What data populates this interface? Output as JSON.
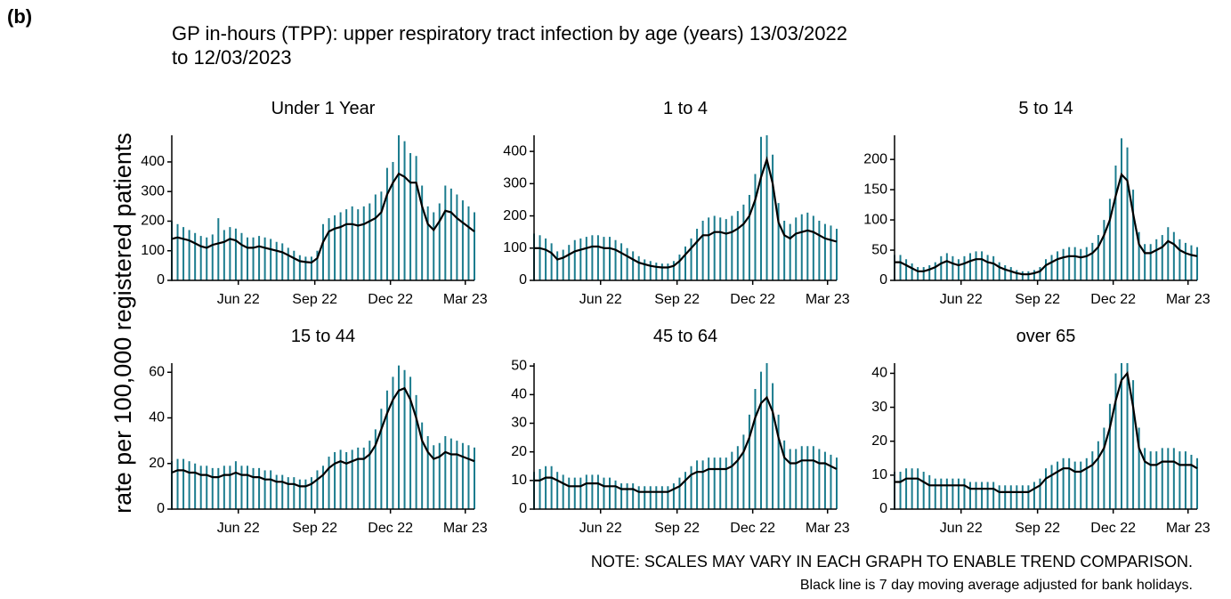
{
  "label": "(b)",
  "title": [
    "GP in-hours (TPP): upper respiratory tract infection by age (years) 13/03/2022",
    "to 12/03/2023"
  ],
  "ylabel": "rate per 100,000 registered patients",
  "notes": [
    "NOTE: SCALES MAY VARY IN EACH GRAPH TO ENABLE TREND COMPARISON.",
    "Black line is 7 day moving average adjusted for bank holidays."
  ],
  "chart_data": [
    {
      "type": "line",
      "title": "Under 1 Year",
      "x": [
        0,
        7,
        14,
        21,
        28,
        35,
        42,
        49,
        56,
        63,
        70,
        77,
        84,
        91,
        98,
        105,
        112,
        119,
        126,
        133,
        140,
        147,
        154,
        161,
        168,
        175,
        182,
        189,
        196,
        203,
        210,
        217,
        224,
        231,
        238,
        245,
        252,
        259,
        266,
        273,
        280,
        287,
        294,
        301,
        308,
        315,
        322,
        329,
        336,
        343,
        350,
        357,
        364
      ],
      "series": [
        {
          "color": "#1b7c8e",
          "values": [
            200,
            190,
            180,
            170,
            160,
            150,
            145,
            155,
            210,
            170,
            180,
            175,
            160,
            145,
            145,
            150,
            145,
            140,
            130,
            125,
            110,
            100,
            85,
            80,
            80,
            100,
            190,
            210,
            220,
            230,
            240,
            250,
            240,
            250,
            260,
            290,
            300,
            380,
            400,
            490,
            470,
            430,
            420,
            320,
            250,
            230,
            260,
            320,
            310,
            290,
            270,
            250,
            230
          ]
        },
        {
          "color": "#000000",
          "values": [
            140,
            145,
            140,
            135,
            125,
            115,
            110,
            120,
            125,
            130,
            140,
            135,
            120,
            110,
            110,
            115,
            110,
            105,
            100,
            95,
            85,
            75,
            65,
            62,
            60,
            75,
            130,
            165,
            175,
            180,
            190,
            190,
            185,
            190,
            200,
            210,
            230,
            290,
            330,
            360,
            350,
            330,
            330,
            250,
            190,
            170,
            200,
            235,
            230,
            210,
            195,
            180,
            165
          ]
        }
      ],
      "xlim": [
        0,
        364
      ],
      "ylim": [
        0,
        490
      ],
      "xticks": [
        {
          "value": 80,
          "label": "Jun 22"
        },
        {
          "value": 172,
          "label": "Sep 22"
        },
        {
          "value": 263,
          "label": "Dec 22"
        },
        {
          "value": 353,
          "label": "Mar 23"
        }
      ],
      "yticks": [
        0,
        100,
        200,
        300,
        400
      ]
    },
    {
      "type": "line",
      "title": "1 to 4",
      "x": [
        0,
        7,
        14,
        21,
        28,
        35,
        42,
        49,
        56,
        63,
        70,
        77,
        84,
        91,
        98,
        105,
        112,
        119,
        126,
        133,
        140,
        147,
        154,
        161,
        168,
        175,
        182,
        189,
        196,
        203,
        210,
        217,
        224,
        231,
        238,
        245,
        252,
        259,
        266,
        273,
        280,
        287,
        294,
        301,
        308,
        315,
        322,
        329,
        336,
        343,
        350,
        357,
        364
      ],
      "series": [
        {
          "color": "#1b7c8e",
          "values": [
            145,
            140,
            130,
            115,
            90,
            95,
            110,
            125,
            130,
            135,
            140,
            140,
            135,
            135,
            125,
            115,
            100,
            90,
            75,
            65,
            60,
            55,
            52,
            52,
            60,
            80,
            105,
            130,
            160,
            185,
            195,
            200,
            195,
            190,
            200,
            215,
            235,
            265,
            330,
            445,
            450,
            390,
            240,
            185,
            175,
            195,
            205,
            210,
            200,
            185,
            175,
            170,
            160
          ]
        },
        {
          "color": "#000000",
          "values": [
            100,
            100,
            95,
            85,
            65,
            70,
            80,
            90,
            95,
            100,
            105,
            105,
            100,
            100,
            95,
            85,
            75,
            65,
            55,
            50,
            45,
            42,
            40,
            40,
            45,
            60,
            80,
            100,
            120,
            140,
            140,
            150,
            150,
            145,
            150,
            160,
            175,
            200,
            250,
            320,
            375,
            300,
            180,
            140,
            130,
            145,
            150,
            155,
            150,
            140,
            130,
            125,
            120
          ]
        }
      ],
      "xlim": [
        0,
        364
      ],
      "ylim": [
        0,
        450
      ],
      "xticks": [
        {
          "value": 80,
          "label": "Jun 22"
        },
        {
          "value": 172,
          "label": "Sep 22"
        },
        {
          "value": 263,
          "label": "Dec 22"
        },
        {
          "value": 353,
          "label": "Mar 23"
        }
      ],
      "yticks": [
        0,
        100,
        200,
        300,
        400
      ]
    },
    {
      "type": "line",
      "title": "5 to 14",
      "x": [
        0,
        7,
        14,
        21,
        28,
        35,
        42,
        49,
        56,
        63,
        70,
        77,
        84,
        91,
        98,
        105,
        112,
        119,
        126,
        133,
        140,
        147,
        154,
        161,
        168,
        175,
        182,
        189,
        196,
        203,
        210,
        217,
        224,
        231,
        238,
        245,
        252,
        259,
        266,
        273,
        280,
        287,
        294,
        301,
        308,
        315,
        322,
        329,
        336,
        343,
        350,
        357,
        364
      ],
      "series": [
        {
          "color": "#1b7c8e",
          "values": [
            42,
            42,
            35,
            28,
            22,
            22,
            25,
            30,
            40,
            45,
            40,
            35,
            40,
            45,
            48,
            48,
            42,
            40,
            30,
            25,
            22,
            17,
            15,
            15,
            17,
            22,
            35,
            42,
            48,
            52,
            55,
            55,
            52,
            55,
            62,
            75,
            100,
            135,
            190,
            235,
            220,
            150,
            80,
            60,
            60,
            68,
            75,
            88,
            80,
            68,
            62,
            58,
            55
          ]
        },
        {
          "color": "#000000",
          "values": [
            30,
            30,
            25,
            20,
            15,
            15,
            18,
            22,
            28,
            32,
            28,
            25,
            28,
            32,
            35,
            35,
            30,
            28,
            22,
            18,
            15,
            12,
            10,
            10,
            12,
            15,
            25,
            30,
            35,
            38,
            40,
            40,
            38,
            40,
            45,
            55,
            75,
            100,
            140,
            175,
            165,
            110,
            60,
            45,
            45,
            50,
            55,
            65,
            60,
            50,
            45,
            42,
            40
          ]
        }
      ],
      "xlim": [
        0,
        364
      ],
      "ylim": [
        0,
        240
      ],
      "xticks": [
        {
          "value": 80,
          "label": "Jun 22"
        },
        {
          "value": 172,
          "label": "Sep 22"
        },
        {
          "value": 263,
          "label": "Dec 22"
        },
        {
          "value": 353,
          "label": "Mar 23"
        }
      ],
      "yticks": [
        0,
        50,
        100,
        150,
        200
      ]
    },
    {
      "type": "line",
      "title": "15 to 44",
      "x": [
        0,
        7,
        14,
        21,
        28,
        35,
        42,
        49,
        56,
        63,
        70,
        77,
        84,
        91,
        98,
        105,
        112,
        119,
        126,
        133,
        140,
        147,
        154,
        161,
        168,
        175,
        182,
        189,
        196,
        203,
        210,
        217,
        224,
        231,
        238,
        245,
        252,
        259,
        266,
        273,
        280,
        287,
        294,
        301,
        308,
        315,
        322,
        329,
        336,
        343,
        350,
        357,
        364
      ],
      "series": [
        {
          "color": "#1b7c8e",
          "values": [
            21,
            22,
            22,
            21,
            20,
            19,
            19,
            18,
            18,
            19,
            19,
            21,
            19,
            19,
            18,
            18,
            17,
            17,
            15,
            15,
            14,
            14,
            13,
            13,
            14,
            17,
            19,
            23,
            25,
            26,
            25,
            26,
            27,
            27,
            30,
            35,
            44,
            52,
            58,
            63,
            61,
            58,
            50,
            38,
            32,
            28,
            29,
            32,
            31,
            30,
            29,
            28,
            27
          ]
        },
        {
          "color": "#000000",
          "values": [
            16,
            17,
            17,
            16,
            16,
            15,
            15,
            14,
            14,
            15,
            15,
            16,
            15,
            15,
            14,
            14,
            13,
            13,
            12,
            12,
            11,
            11,
            10,
            10,
            11,
            13,
            15,
            18,
            20,
            21,
            20,
            21,
            22,
            22,
            24,
            28,
            35,
            42,
            48,
            52,
            53,
            48,
            40,
            30,
            25,
            22,
            23,
            25,
            24,
            24,
            23,
            22,
            21
          ]
        }
      ],
      "xlim": [
        0,
        364
      ],
      "ylim": [
        0,
        64
      ],
      "xticks": [
        {
          "value": 80,
          "label": "Jun 22"
        },
        {
          "value": 172,
          "label": "Sep 22"
        },
        {
          "value": 263,
          "label": "Dec 22"
        },
        {
          "value": 353,
          "label": "Mar 23"
        }
      ],
      "yticks": [
        0,
        20,
        40,
        60
      ]
    },
    {
      "type": "line",
      "title": "45 to 64",
      "x": [
        0,
        7,
        14,
        21,
        28,
        35,
        42,
        49,
        56,
        63,
        70,
        77,
        84,
        91,
        98,
        105,
        112,
        119,
        126,
        133,
        140,
        147,
        154,
        161,
        168,
        175,
        182,
        189,
        196,
        203,
        210,
        217,
        224,
        231,
        238,
        245,
        252,
        259,
        266,
        273,
        280,
        287,
        294,
        301,
        308,
        315,
        322,
        329,
        336,
        343,
        350,
        357,
        364
      ],
      "series": [
        {
          "color": "#1b7c8e",
          "values": [
            13,
            14,
            15,
            15,
            13,
            12,
            11,
            11,
            11,
            12,
            12,
            12,
            11,
            11,
            10,
            9,
            9,
            9,
            8,
            8,
            8,
            8,
            8,
            8,
            9,
            11,
            13,
            15,
            17,
            17,
            18,
            18,
            18,
            18,
            20,
            22,
            26,
            33,
            42,
            48,
            51,
            44,
            33,
            24,
            21,
            21,
            22,
            22,
            22,
            21,
            20,
            19,
            18
          ]
        },
        {
          "color": "#000000",
          "values": [
            10,
            10,
            11,
            11,
            10,
            9,
            8,
            8,
            8,
            9,
            9,
            9,
            8,
            8,
            8,
            7,
            7,
            7,
            6,
            6,
            6,
            6,
            6,
            6,
            7,
            8,
            10,
            12,
            13,
            13,
            14,
            14,
            14,
            14,
            15,
            17,
            20,
            25,
            32,
            37,
            39,
            34,
            25,
            18,
            16,
            16,
            17,
            17,
            17,
            16,
            16,
            15,
            14
          ]
        }
      ],
      "xlim": [
        0,
        364
      ],
      "ylim": [
        0,
        51
      ],
      "xticks": [
        {
          "value": 80,
          "label": "Jun 22"
        },
        {
          "value": 172,
          "label": "Sep 22"
        },
        {
          "value": 263,
          "label": "Dec 22"
        },
        {
          "value": 353,
          "label": "Mar 23"
        }
      ],
      "yticks": [
        0,
        10,
        20,
        30,
        40,
        50
      ]
    },
    {
      "type": "line",
      "title": "over 65",
      "x": [
        0,
        7,
        14,
        21,
        28,
        35,
        42,
        49,
        56,
        63,
        70,
        77,
        84,
        91,
        98,
        105,
        112,
        119,
        126,
        133,
        140,
        147,
        154,
        161,
        168,
        175,
        182,
        189,
        196,
        203,
        210,
        217,
        224,
        231,
        238,
        245,
        252,
        259,
        266,
        273,
        280,
        287,
        294,
        301,
        308,
        315,
        322,
        329,
        336,
        343,
        350,
        357,
        364
      ],
      "series": [
        {
          "color": "#1b7c8e",
          "values": [
            11,
            11,
            12,
            12,
            12,
            11,
            10,
            9,
            9,
            9,
            9,
            9,
            9,
            8,
            8,
            8,
            8,
            8,
            7,
            7,
            7,
            7,
            7,
            7,
            8,
            9,
            12,
            13,
            14,
            15,
            15,
            14,
            14,
            15,
            17,
            20,
            24,
            31,
            40,
            43,
            43,
            38,
            24,
            18,
            17,
            17,
            18,
            18,
            18,
            17,
            17,
            16,
            15
          ]
        },
        {
          "color": "#000000",
          "values": [
            8,
            8,
            9,
            9,
            9,
            8,
            7,
            7,
            7,
            7,
            7,
            7,
            7,
            6,
            6,
            6,
            6,
            6,
            5,
            5,
            5,
            5,
            5,
            5,
            6,
            7,
            9,
            10,
            11,
            12,
            12,
            11,
            11,
            12,
            13,
            15,
            18,
            24,
            32,
            38,
            40,
            30,
            18,
            14,
            13,
            13,
            14,
            14,
            14,
            13,
            13,
            13,
            12
          ]
        }
      ],
      "xlim": [
        0,
        364
      ],
      "ylim": [
        0,
        43
      ],
      "xticks": [
        {
          "value": 80,
          "label": "Jun 22"
        },
        {
          "value": 172,
          "label": "Sep 22"
        },
        {
          "value": 263,
          "label": "Dec 22"
        },
        {
          "value": 353,
          "label": "Mar 23"
        }
      ],
      "yticks": [
        0,
        10,
        20,
        30,
        40
      ]
    }
  ]
}
